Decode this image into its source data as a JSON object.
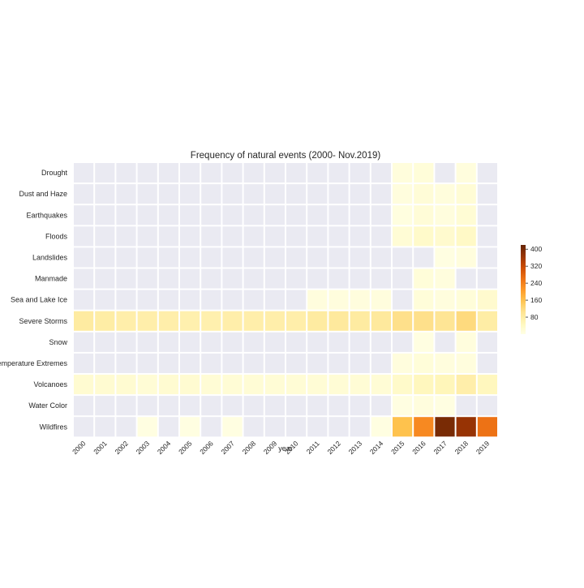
{
  "chart_data": {
    "type": "heatmap",
    "title": "Frequency of natural events (2000- Nov.2019)",
    "xlabel": "year",
    "ylabel": "",
    "x_categories": [
      "2000",
      "2001",
      "2002",
      "2003",
      "2004",
      "2005",
      "2006",
      "2007",
      "2008",
      "2009",
      "2010",
      "2011",
      "2012",
      "2013",
      "2014",
      "2015",
      "2016",
      "2017",
      "2018",
      "2019"
    ],
    "y_categories": [
      "Drought",
      "Dust and Haze",
      "Earthquakes",
      "Floods",
      "Landslides",
      "Manmade",
      "Sea and Lake Ice",
      "Severe Storms",
      "Snow",
      "Temperature Extremes",
      "Volcanoes",
      "Water Color",
      "Wildfires"
    ],
    "values": [
      [
        null,
        null,
        null,
        null,
        null,
        null,
        null,
        null,
        null,
        null,
        null,
        null,
        null,
        null,
        null,
        12,
        15,
        null,
        10,
        null
      ],
      [
        null,
        null,
        null,
        null,
        null,
        null,
        null,
        null,
        null,
        null,
        null,
        null,
        null,
        null,
        null,
        10,
        18,
        12,
        20,
        null
      ],
      [
        null,
        null,
        null,
        null,
        null,
        null,
        null,
        null,
        null,
        null,
        null,
        null,
        null,
        null,
        null,
        8,
        18,
        10,
        22,
        null
      ],
      [
        null,
        null,
        null,
        null,
        null,
        null,
        null,
        null,
        null,
        null,
        null,
        null,
        null,
        null,
        null,
        20,
        35,
        30,
        40,
        null
      ],
      [
        null,
        null,
        null,
        null,
        null,
        null,
        null,
        null,
        null,
        null,
        null,
        null,
        null,
        null,
        null,
        null,
        null,
        5,
        10,
        null
      ],
      [
        null,
        null,
        null,
        null,
        null,
        null,
        null,
        null,
        null,
        null,
        null,
        null,
        null,
        null,
        null,
        null,
        15,
        10,
        null,
        null
      ],
      [
        null,
        null,
        null,
        null,
        null,
        null,
        null,
        null,
        null,
        null,
        null,
        10,
        10,
        10,
        10,
        null,
        15,
        10,
        15,
        30
      ],
      [
        85,
        80,
        75,
        75,
        75,
        70,
        70,
        75,
        75,
        75,
        75,
        85,
        90,
        85,
        90,
        110,
        110,
        100,
        120,
        80
      ],
      [
        null,
        null,
        null,
        null,
        null,
        null,
        null,
        null,
        null,
        null,
        null,
        null,
        null,
        null,
        null,
        null,
        5,
        null,
        10,
        null
      ],
      [
        null,
        null,
        null,
        null,
        null,
        null,
        null,
        null,
        null,
        null,
        null,
        null,
        null,
        null,
        null,
        10,
        15,
        10,
        10,
        null
      ],
      [
        25,
        25,
        25,
        20,
        25,
        25,
        20,
        20,
        20,
        20,
        20,
        20,
        20,
        20,
        20,
        35,
        50,
        55,
        75,
        50
      ],
      [
        null,
        null,
        null,
        null,
        null,
        null,
        null,
        null,
        null,
        null,
        null,
        null,
        null,
        null,
        null,
        5,
        10,
        5,
        null,
        null
      ],
      [
        null,
        null,
        null,
        5,
        null,
        5,
        null,
        5,
        null,
        null,
        null,
        null,
        null,
        null,
        5,
        160,
        230,
        400,
        370,
        260
      ]
    ],
    "colorbar": {
      "ticks": [
        80,
        160,
        240,
        320,
        400
      ],
      "min": 0,
      "max": 420,
      "colormap": "YlOrBr"
    },
    "missing_color": "#eaeaf2",
    "grid": false,
    "legend": "colorbar-right"
  }
}
